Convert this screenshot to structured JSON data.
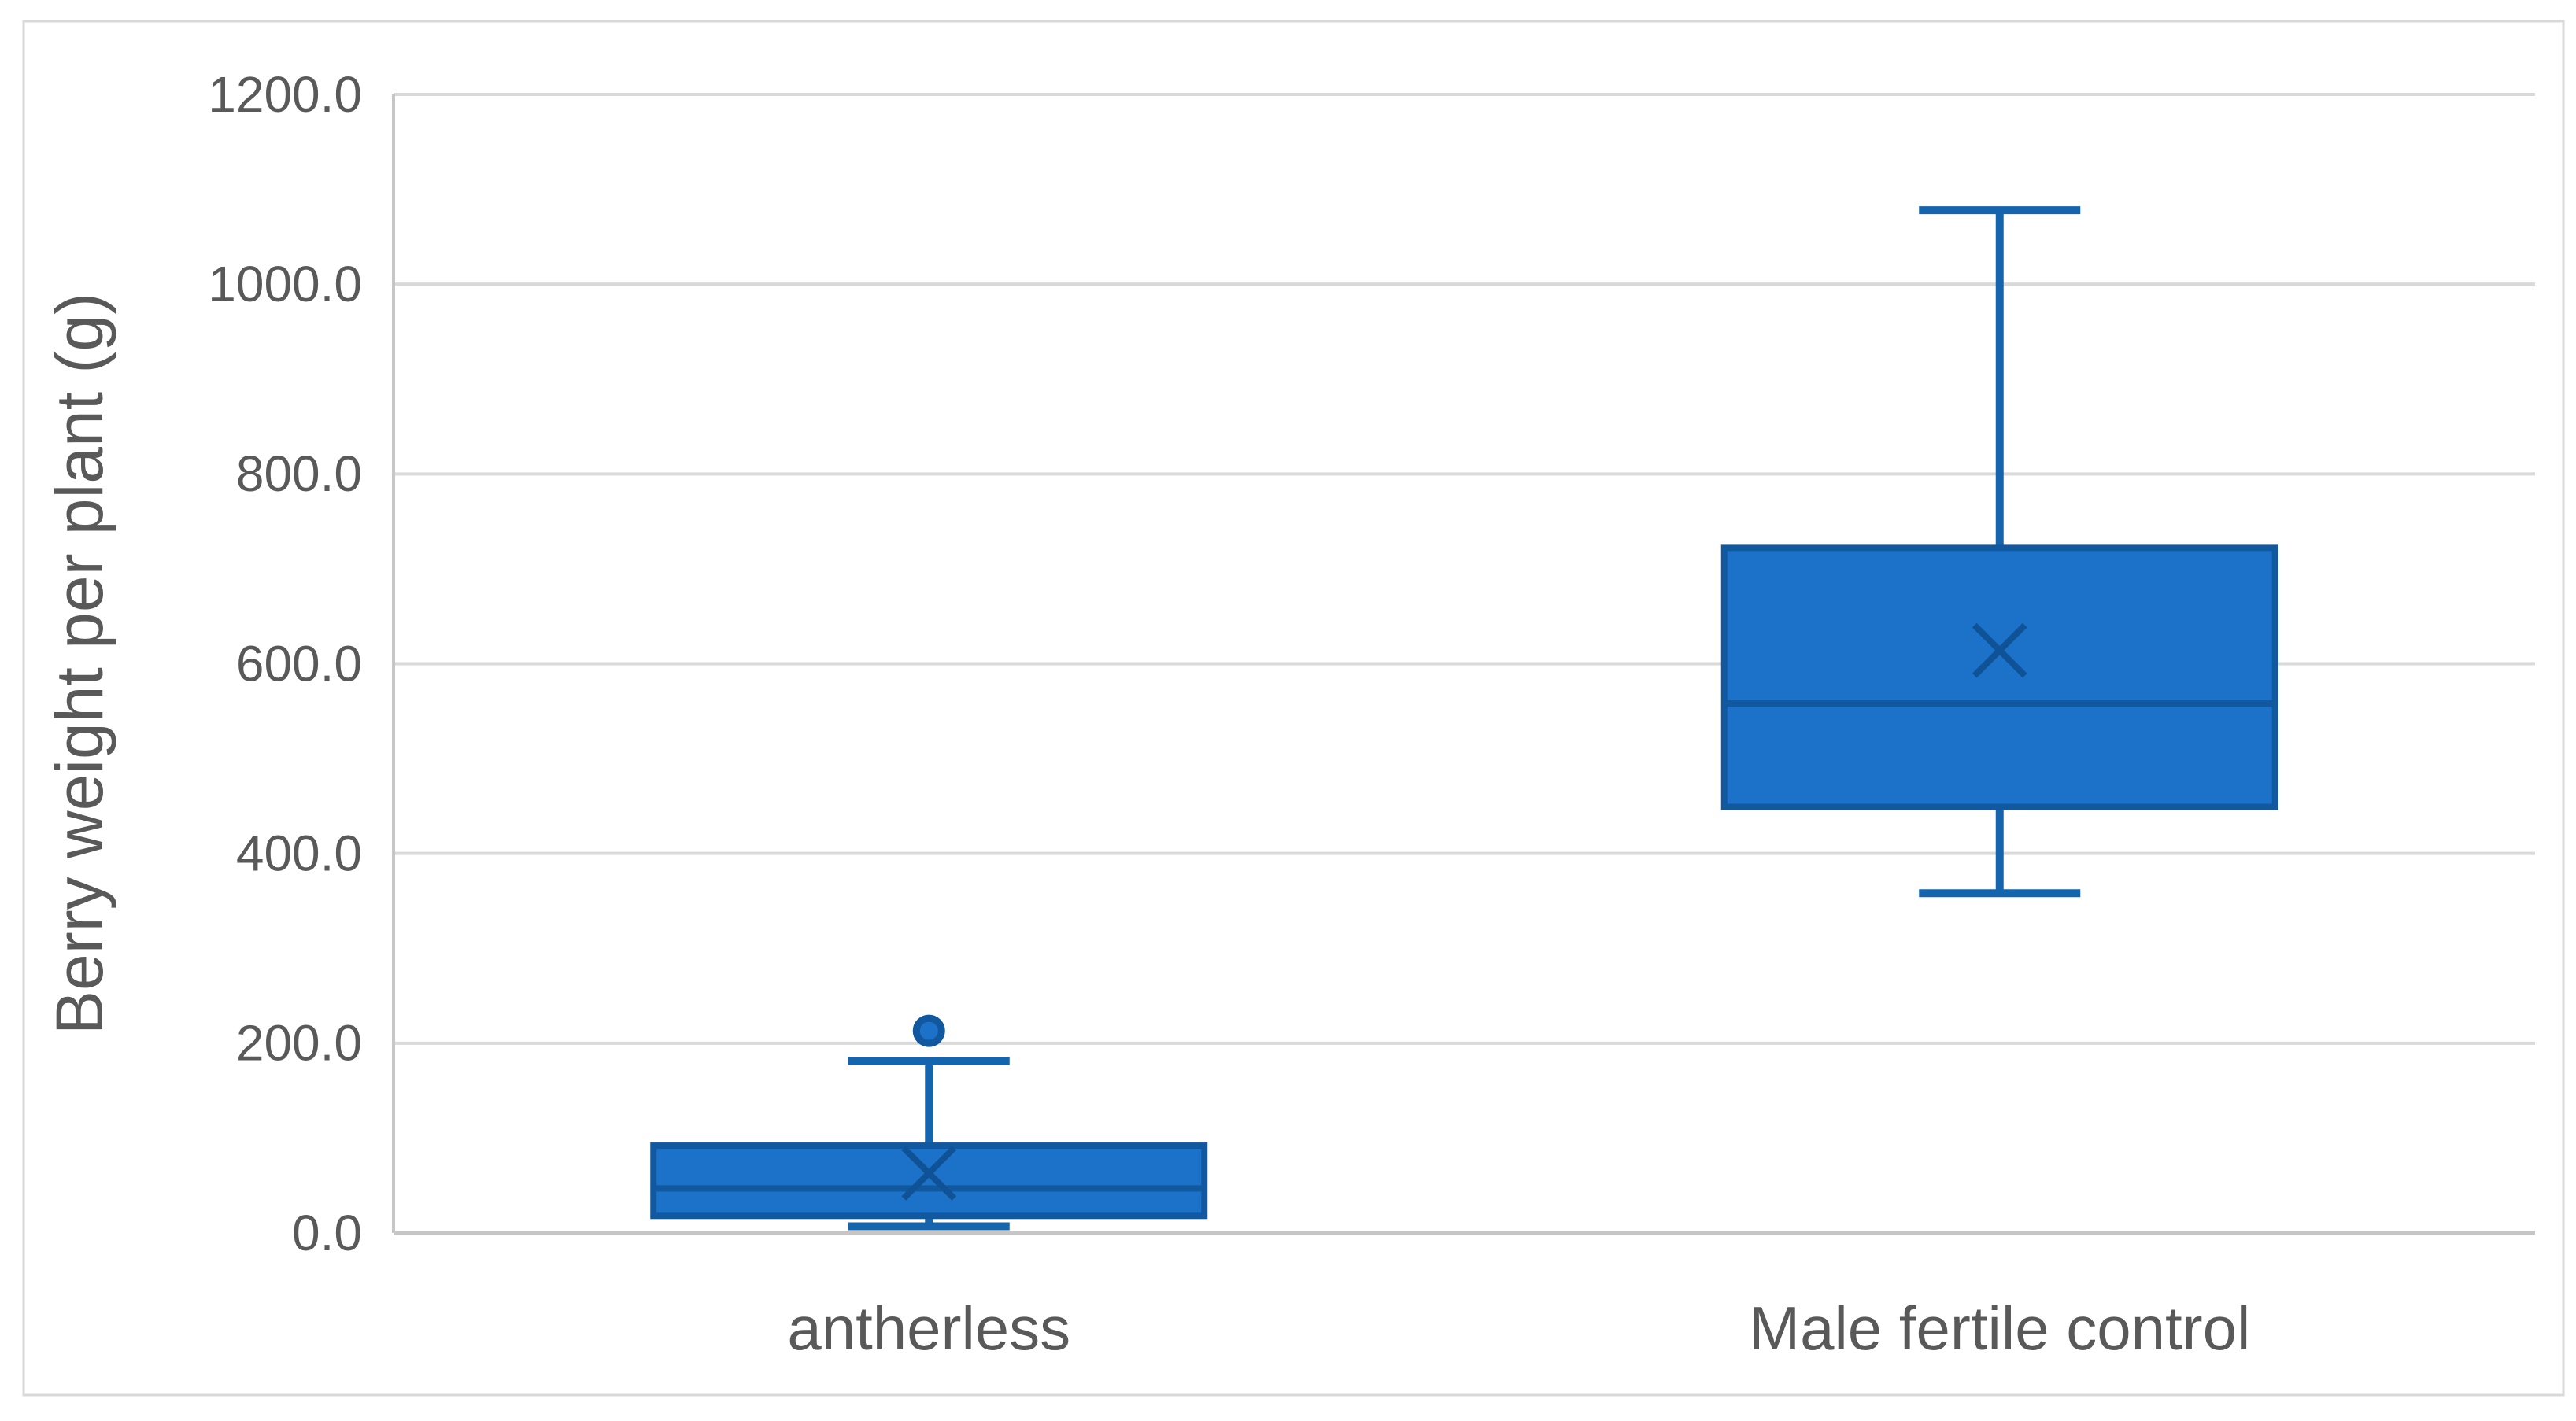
{
  "chart_data": {
    "type": "box",
    "title": "",
    "ylabel": "Berry weight per plant (g)",
    "xlabel": "",
    "ylim": [
      0,
      1200
    ],
    "ytick_step": 200,
    "ytick_values": [
      0,
      200,
      400,
      600,
      800,
      1000,
      1200
    ],
    "ytick_labels": [
      "0.0",
      "200.0",
      "400.0",
      "600.0",
      "800.0",
      "1000.0",
      "1200.0"
    ],
    "grid": "horizontal",
    "legend": "none",
    "categories": [
      "antherless",
      "Male fertile control"
    ],
    "series": [
      {
        "category": "antherless",
        "min": 7,
        "q1": 18,
        "median": 47,
        "mean": 63,
        "q3": 92,
        "max": 181,
        "outliers": [
          213
        ]
      },
      {
        "category": "Male fertile control",
        "min": 358,
        "q1": 449,
        "median": 558,
        "mean": 614,
        "q3": 722,
        "max": 1078,
        "outliers": []
      }
    ],
    "colors": {
      "box_fill": "#1B72C8",
      "box_border": "#11589F",
      "whisker": "#1565AE",
      "mean_marker": "#0F5396",
      "outlier_fill": "#1B72C8",
      "outlier_ring": "#11589F",
      "gridline": "#D9D9D9",
      "axis_line": "#C6C6C6",
      "text": "#595959",
      "chart_border": "#D9D9D9",
      "background": "#FFFFFF"
    }
  }
}
